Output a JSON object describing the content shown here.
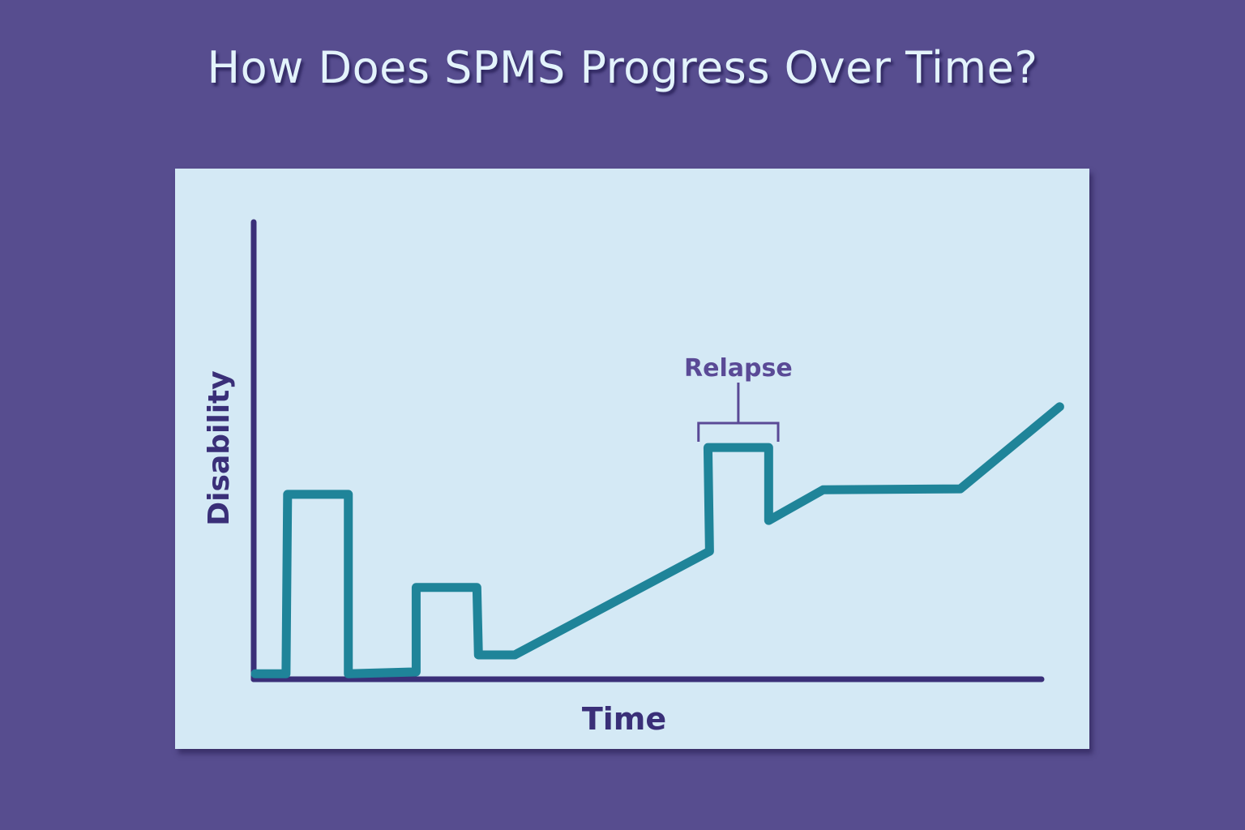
{
  "title": "How Does SPMS Progress Over Time?",
  "chart_data": {
    "type": "line",
    "xlabel": "Time",
    "ylabel": "Disability",
    "xlim": [
      0,
      100
    ],
    "ylim": [
      0,
      100
    ],
    "grid": false,
    "legend": "none",
    "series": [
      {
        "x": [
          0.3,
          4.2,
          4.4,
          12.1,
          12.1,
          20.7,
          20.7,
          28.4,
          28.6,
          33.2,
          57.9,
          57.7,
          65.4,
          65.4,
          72.3,
          89.7,
          102.3
        ],
        "y": [
          1.2,
          1.2,
          40.3,
          40.3,
          1.2,
          1.6,
          20.0,
          20.0,
          5.3,
          5.3,
          27.9,
          50.5,
          50.5,
          34.6,
          41.3,
          41.5,
          59.4
        ]
      }
    ],
    "annotations": [
      {
        "text": "Relapse",
        "x_start": 56.5,
        "x_end": 66.6,
        "type": "bracket"
      }
    ],
    "colors": {
      "background": "#574d8f",
      "panel": "#d4e9f5",
      "line": "#1f8499",
      "axis": "#3a2f78",
      "annotation": "#5a4a96",
      "title": "#e3f3fb"
    }
  }
}
